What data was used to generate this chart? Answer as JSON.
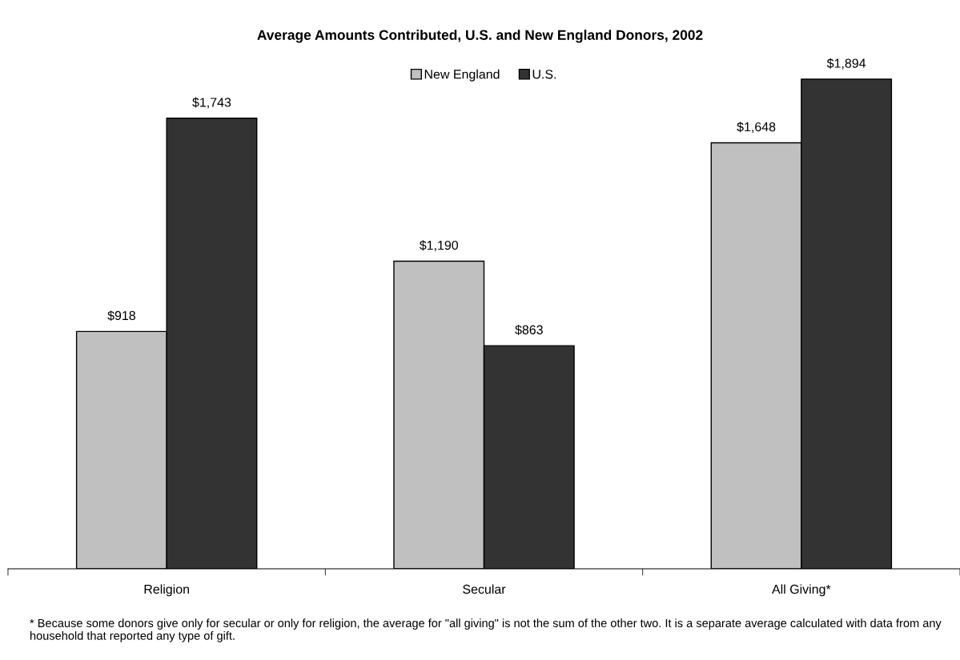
{
  "chart_data": {
    "type": "bar",
    "title": "Average Amounts Contributed, U.S. and New England Donors, 2002",
    "categories": [
      "Religion",
      "Secular",
      "All Giving*"
    ],
    "series": [
      {
        "name": "New England",
        "color": "#c0c0c0",
        "values": [
          918,
          1190,
          1648
        ],
        "value_labels": [
          "$918",
          "$1,190",
          "$1,648"
        ]
      },
      {
        "name": "U.S.",
        "color": "#333333",
        "values": [
          1743,
          863,
          1894
        ],
        "value_labels": [
          "$1,743",
          "$863",
          "$1,894"
        ]
      }
    ],
    "legend": "top",
    "grid": false,
    "tick_labels": "x",
    "annotations": [
      "* Because some donors give only for secular or only for religion, the average for \"all giving\" is not the sum of the other two. It is a separate average calculated with data from any household that reported any type of gift."
    ]
  }
}
